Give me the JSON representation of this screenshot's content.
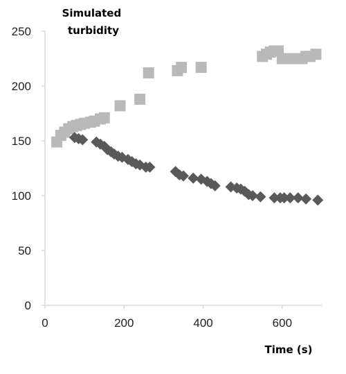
{
  "chart_data": {
    "type": "scatter",
    "title": "",
    "ylabel_lines": [
      "Simulated",
      "turbidity"
    ],
    "xlabel": "Time (s)",
    "xlim": [
      0,
      700
    ],
    "ylim": [
      0,
      250
    ],
    "x_ticks": [
      0,
      200,
      400,
      600
    ],
    "y_ticks": [
      0,
      50,
      100,
      150,
      200,
      250
    ],
    "grid": false,
    "legend": "none",
    "colors": {
      "axis": "#d9d9d9",
      "square_series": "#b9b9b9",
      "diamond_series": "#595959"
    },
    "series": [
      {
        "marker": "square",
        "points": [
          {
            "x": 30,
            "y": 149
          },
          {
            "x": 40,
            "y": 155
          },
          {
            "x": 50,
            "y": 158
          },
          {
            "x": 60,
            "y": 161
          },
          {
            "x": 70,
            "y": 163
          },
          {
            "x": 80,
            "y": 164
          },
          {
            "x": 90,
            "y": 165
          },
          {
            "x": 100,
            "y": 166
          },
          {
            "x": 115,
            "y": 167
          },
          {
            "x": 125,
            "y": 168
          },
          {
            "x": 140,
            "y": 170
          },
          {
            "x": 150,
            "y": 171
          },
          {
            "x": 190,
            "y": 182
          },
          {
            "x": 240,
            "y": 188
          },
          {
            "x": 262,
            "y": 212
          },
          {
            "x": 335,
            "y": 214
          },
          {
            "x": 345,
            "y": 217
          },
          {
            "x": 395,
            "y": 217
          },
          {
            "x": 550,
            "y": 227
          },
          {
            "x": 560,
            "y": 229
          },
          {
            "x": 570,
            "y": 231
          },
          {
            "x": 580,
            "y": 232
          },
          {
            "x": 590,
            "y": 232
          },
          {
            "x": 600,
            "y": 225
          },
          {
            "x": 610,
            "y": 225
          },
          {
            "x": 620,
            "y": 225
          },
          {
            "x": 630,
            "y": 225
          },
          {
            "x": 640,
            "y": 225
          },
          {
            "x": 650,
            "y": 225
          },
          {
            "x": 660,
            "y": 227
          },
          {
            "x": 670,
            "y": 227
          },
          {
            "x": 685,
            "y": 229
          }
        ]
      },
      {
        "marker": "diamond",
        "points": [
          {
            "x": 75,
            "y": 153
          },
          {
            "x": 85,
            "y": 152
          },
          {
            "x": 95,
            "y": 151
          },
          {
            "x": 130,
            "y": 149
          },
          {
            "x": 140,
            "y": 147
          },
          {
            "x": 150,
            "y": 145
          },
          {
            "x": 158,
            "y": 142
          },
          {
            "x": 167,
            "y": 140
          },
          {
            "x": 175,
            "y": 138
          },
          {
            "x": 185,
            "y": 136
          },
          {
            "x": 195,
            "y": 135
          },
          {
            "x": 210,
            "y": 133
          },
          {
            "x": 220,
            "y": 131
          },
          {
            "x": 230,
            "y": 129
          },
          {
            "x": 240,
            "y": 128
          },
          {
            "x": 255,
            "y": 126
          },
          {
            "x": 265,
            "y": 126
          },
          {
            "x": 330,
            "y": 122
          },
          {
            "x": 340,
            "y": 119
          },
          {
            "x": 350,
            "y": 118
          },
          {
            "x": 375,
            "y": 116
          },
          {
            "x": 395,
            "y": 115
          },
          {
            "x": 410,
            "y": 113
          },
          {
            "x": 420,
            "y": 111
          },
          {
            "x": 430,
            "y": 109
          },
          {
            "x": 470,
            "y": 108
          },
          {
            "x": 485,
            "y": 107
          },
          {
            "x": 495,
            "y": 106
          },
          {
            "x": 505,
            "y": 104
          },
          {
            "x": 515,
            "y": 101
          },
          {
            "x": 525,
            "y": 100
          },
          {
            "x": 545,
            "y": 99
          },
          {
            "x": 580,
            "y": 98
          },
          {
            "x": 595,
            "y": 98
          },
          {
            "x": 605,
            "y": 98
          },
          {
            "x": 620,
            "y": 98
          },
          {
            "x": 640,
            "y": 98
          },
          {
            "x": 660,
            "y": 97
          },
          {
            "x": 690,
            "y": 96
          }
        ]
      }
    ]
  }
}
